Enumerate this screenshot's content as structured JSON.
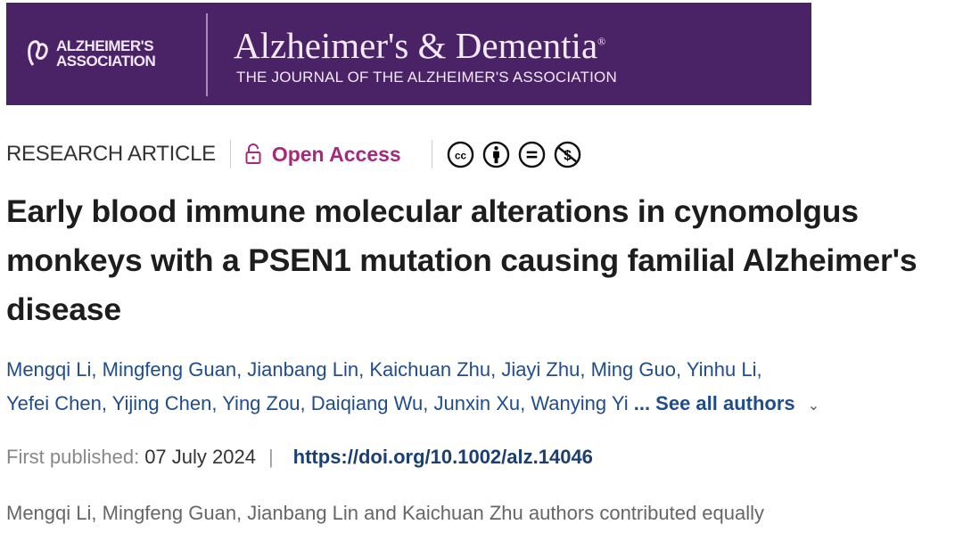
{
  "banner": {
    "association_line1": "ALZHEIMER'S",
    "association_line2": "ASSOCIATION",
    "journal_title": "Alzheimer's & Dementia",
    "registered": "®",
    "journal_subtitle": "THE JOURNAL OF THE ALZHEIMER'S ASSOCIATION",
    "color": "#4a2367"
  },
  "meta": {
    "article_type": "RESEARCH ARTICLE",
    "access_label": "Open Access",
    "access_color": "#a52a7d",
    "license_icons": [
      "cc-icon",
      "by-attribution-icon",
      "nd-no-derivatives-icon",
      "nc-non-commercial-icon"
    ]
  },
  "title": "Early blood immune molecular alterations in cynomolgus monkeys with a PSEN1 mutation causing familial Alzheimer's disease",
  "authors": [
    "Mengqi Li",
    "Mingfeng Guan",
    "Jianbang Lin",
    "Kaichuan Zhu",
    "Jiayi Zhu",
    "Ming Guo",
    "Yinhu Li",
    "Yefei Chen",
    "Yijing Chen",
    "Ying Zou",
    "Daiqiang Wu",
    "Junxin Xu",
    "Wanying Yi"
  ],
  "see_all": "... See all authors",
  "publication": {
    "label": "First published:",
    "date": "07 July 2024",
    "separator": "|",
    "doi": "https://doi.org/10.1002/alz.14046"
  },
  "note": "Mengqi Li, Mingfeng Guan, Jianbang Lin and Kaichuan Zhu authors contributed equally"
}
